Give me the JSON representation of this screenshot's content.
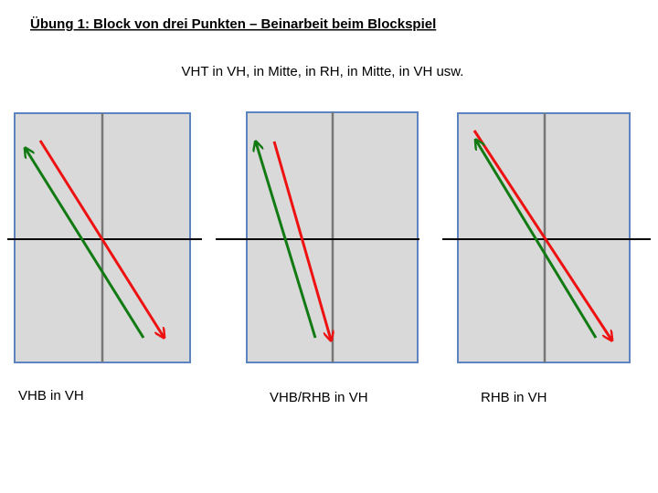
{
  "header": {
    "title": "Übung 1: Block von drei Punkten – Beinarbeit beim Blockspiel",
    "subtitle": "VHT in VH, in Mitte, in RH, in Mitte, in VH usw."
  },
  "panels": [
    {
      "label": "VHB in VH"
    },
    {
      "label": "VHB/RHB in VH"
    },
    {
      "label": "RHB in VH"
    }
  ]
}
